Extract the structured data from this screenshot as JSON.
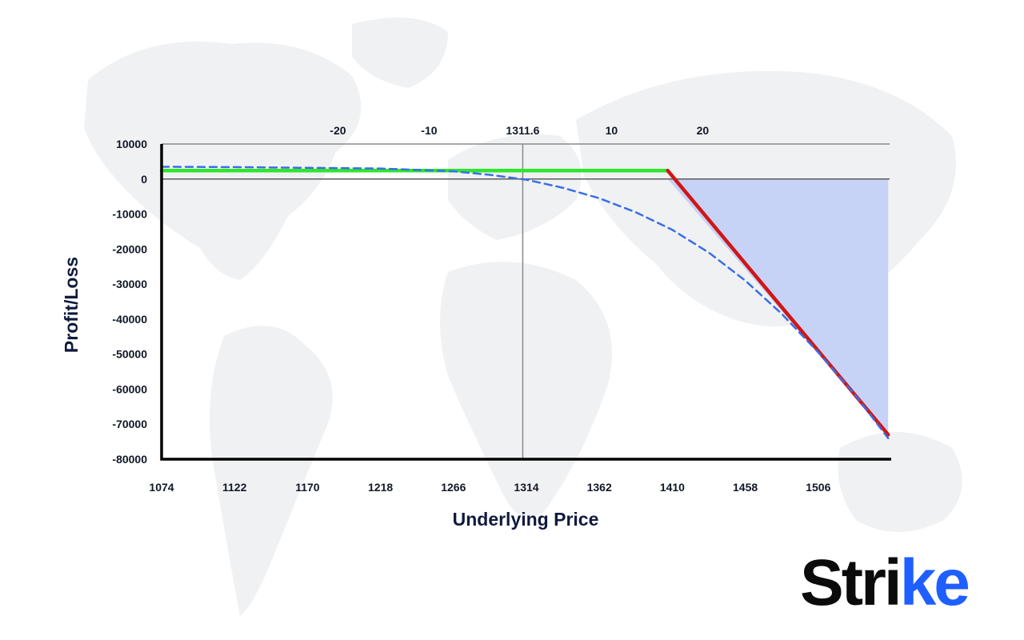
{
  "brand": {
    "name_main": "Stri",
    "name_accent": "ke",
    "accent_color": "#1f5eff"
  },
  "chart_data": {
    "type": "line",
    "xlabel": "Underlying Price",
    "ylabel": "Profit/Loss",
    "xlim": [
      1074,
      1552
    ],
    "ylim": [
      -80000,
      10000
    ],
    "x_ticks": [
      1074,
      1122,
      1170,
      1218,
      1266,
      1314,
      1362,
      1410,
      1458,
      1506
    ],
    "y_ticks": [
      10000,
      0,
      -10000,
      -20000,
      -30000,
      -40000,
      -50000,
      -60000,
      -70000,
      -80000
    ],
    "top_axis": {
      "ticks": [
        {
          "x": 1190,
          "label": "-20"
        },
        {
          "x": 1250,
          "label": "-10"
        },
        {
          "x": 1311.6,
          "label": "1311.6"
        },
        {
          "x": 1370,
          "label": "10"
        },
        {
          "x": 1430,
          "label": "20"
        }
      ]
    },
    "reference_lines": {
      "vertical_x": 1311.6,
      "horizontal_y": 0,
      "upper_y": 10000
    },
    "series": [
      {
        "style": "solid",
        "color": "#2ee62e",
        "x": [
          1074,
          1407
        ],
        "y": [
          2400,
          2400
        ]
      },
      {
        "style": "solid",
        "color": "#d01616",
        "x": [
          1407,
          1552
        ],
        "y": [
          2400,
          -73000
        ]
      },
      {
        "style": "dashed",
        "color": "#3a6ee8",
        "x": [
          1074,
          1122,
          1170,
          1218,
          1266,
          1290,
          1314,
          1338,
          1362,
          1386,
          1410,
          1434,
          1458,
          1482,
          1506,
          1530,
          1552
        ],
        "y": [
          3500,
          3400,
          3200,
          3000,
          2200,
          1200,
          -200,
          -2500,
          -5500,
          -9500,
          -14500,
          -21000,
          -29000,
          -38500,
          -49500,
          -61500,
          -74000
        ]
      }
    ],
    "loss_area": {
      "color": "#c3d0f5",
      "x_start": 1407,
      "x_end": 1552
    },
    "grid": false
  }
}
